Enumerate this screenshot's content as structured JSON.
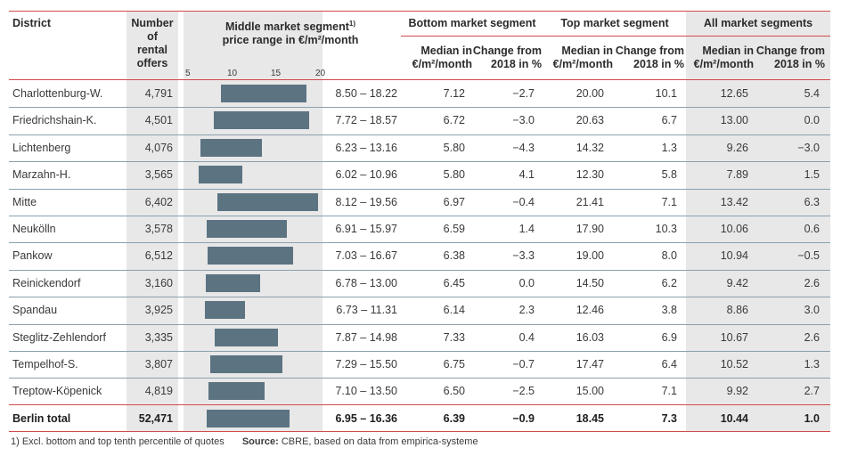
{
  "headers": {
    "district": "District",
    "offers": [
      "Number",
      "of",
      "rental",
      "offers"
    ],
    "middle": [
      "Middle market segment",
      "price range in €/m²/month"
    ],
    "middle_sup": "1)",
    "bottom": "Bottom market segment",
    "top": "Top market segment",
    "all": "All market segments",
    "median": [
      "Median in",
      "€/m²/month"
    ],
    "change": [
      "Change from",
      "2018 in %"
    ]
  },
  "axis_ticks": [
    "5",
    "10",
    "15",
    "20"
  ],
  "axis_range": [
    5,
    20
  ],
  "rows": [
    {
      "district": "Charlottenburg-W.",
      "offers": "4,791",
      "low": 8.5,
      "high": 18.22,
      "range": "8.50 – 18.22",
      "b_med": "7.12",
      "b_chg": "−2.7",
      "t_med": "20.00",
      "t_chg": "10.1",
      "a_med": "12.65",
      "a_chg": "5.4"
    },
    {
      "district": "Friedrichshain-K.",
      "offers": "4,501",
      "low": 7.72,
      "high": 18.57,
      "range": "7.72 – 18.57",
      "b_med": "6.72",
      "b_chg": "−3.0",
      "t_med": "20.63",
      "t_chg": "6.7",
      "a_med": "13.00",
      "a_chg": "0.0"
    },
    {
      "district": "Lichtenberg",
      "offers": "4,076",
      "low": 6.23,
      "high": 13.16,
      "range": "6.23 – 13.16",
      "b_med": "5.80",
      "b_chg": "−4.3",
      "t_med": "14.32",
      "t_chg": "1.3",
      "a_med": "9.26",
      "a_chg": "−3.0"
    },
    {
      "district": "Marzahn-H.",
      "offers": "3,565",
      "low": 6.02,
      "high": 10.96,
      "range": "6.02 – 10.96",
      "b_med": "5.80",
      "b_chg": "4.1",
      "t_med": "12.30",
      "t_chg": "5.8",
      "a_med": "7.89",
      "a_chg": "1.5"
    },
    {
      "district": "Mitte",
      "offers": "6,402",
      "low": 8.12,
      "high": 19.56,
      "range": "8.12 – 19.56",
      "b_med": "6.97",
      "b_chg": "−0.4",
      "t_med": "21.41",
      "t_chg": "7.1",
      "a_med": "13.42",
      "a_chg": "6.3"
    },
    {
      "district": "Neukölln",
      "offers": "3,578",
      "low": 6.91,
      "high": 15.97,
      "range": "6.91 – 15.97",
      "b_med": "6.59",
      "b_chg": "1.4",
      "t_med": "17.90",
      "t_chg": "10.3",
      "a_med": "10.06",
      "a_chg": "0.6"
    },
    {
      "district": "Pankow",
      "offers": "6,512",
      "low": 7.03,
      "high": 16.67,
      "range": "7.03 – 16.67",
      "b_med": "6.38",
      "b_chg": "−3.3",
      "t_med": "19.00",
      "t_chg": "8.0",
      "a_med": "10.94",
      "a_chg": "−0.5"
    },
    {
      "district": "Reinickendorf",
      "offers": "3,160",
      "low": 6.78,
      "high": 13.0,
      "range": "6.78 – 13.00",
      "b_med": "6.45",
      "b_chg": "0.0",
      "t_med": "14.50",
      "t_chg": "6.2",
      "a_med": "9.42",
      "a_chg": "2.6"
    },
    {
      "district": "Spandau",
      "offers": "3,925",
      "low": 6.73,
      "high": 11.31,
      "range": "6.73 – 11.31",
      "b_med": "6.14",
      "b_chg": "2.3",
      "t_med": "12.46",
      "t_chg": "3.8",
      "a_med": "8.86",
      "a_chg": "3.0"
    },
    {
      "district": "Steglitz-Zehlendorf",
      "offers": "3,335",
      "low": 7.87,
      "high": 14.98,
      "range": "7.87 – 14.98",
      "b_med": "7.33",
      "b_chg": "0.4",
      "t_med": "16.03",
      "t_chg": "6.9",
      "a_med": "10.67",
      "a_chg": "2.6"
    },
    {
      "district": "Tempelhof-S.",
      "offers": "3,807",
      "low": 7.29,
      "high": 15.5,
      "range": "7.29 – 15.50",
      "b_med": "6.75",
      "b_chg": "−0.7",
      "t_med": "17.47",
      "t_chg": "6.4",
      "a_med": "10.52",
      "a_chg": "1.3"
    },
    {
      "district": "Treptow-Köpenick",
      "offers": "4,819",
      "low": 7.1,
      "high": 13.5,
      "range": "7.10 – 13.50",
      "b_med": "6.50",
      "b_chg": "−2.5",
      "t_med": "15.00",
      "t_chg": "7.1",
      "a_med": "9.92",
      "a_chg": "2.7"
    }
  ],
  "total": {
    "district": "Berlin total",
    "offers": "52,471",
    "low": 6.95,
    "high": 16.36,
    "range": "6.95 – 16.36",
    "b_med": "6.39",
    "b_chg": "−0.9",
    "t_med": "18.45",
    "t_chg": "7.3",
    "a_med": "10.44",
    "a_chg": "1.0"
  },
  "footnote": "1) Excl. bottom and top tenth percentile of quotes",
  "source_label": "Source:",
  "source_text": "CBRE, based on data from empirica-systeme",
  "colors": {
    "bar": "#5c7382",
    "shade": "#e8e8e8",
    "accent_line": "#d24a4a",
    "row_line": "#8aa0ae"
  }
}
